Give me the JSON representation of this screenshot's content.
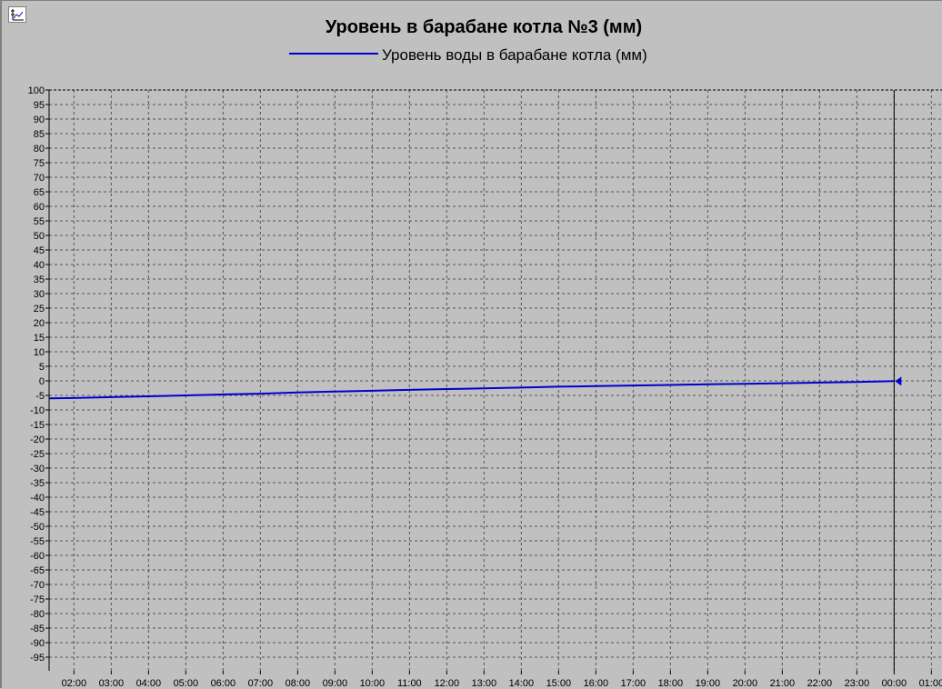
{
  "chart_data": {
    "type": "line",
    "title": "Уровень в барабане котла №3 (мм)",
    "series": [
      {
        "name": "Уровень воды в барабане котла (мм)",
        "color": "#0000d0",
        "points": [
          [
            "01:20",
            -6.0
          ],
          [
            "02:00",
            -5.9
          ],
          [
            "03:00",
            -5.6
          ],
          [
            "04:00",
            -5.3
          ],
          [
            "05:00",
            -5.0
          ],
          [
            "06:00",
            -4.7
          ],
          [
            "07:00",
            -4.4
          ],
          [
            "08:00",
            -4.0
          ],
          [
            "09:00",
            -3.7
          ],
          [
            "10:00",
            -3.4
          ],
          [
            "11:00",
            -3.1
          ],
          [
            "12:00",
            -2.8
          ],
          [
            "13:00",
            -2.6
          ],
          [
            "14:00",
            -2.3
          ],
          [
            "15:00",
            -2.0
          ],
          [
            "16:00",
            -1.8
          ],
          [
            "17:00",
            -1.6
          ],
          [
            "18:00",
            -1.4
          ],
          [
            "19:00",
            -1.2
          ],
          [
            "20:00",
            -1.0
          ],
          [
            "21:00",
            -0.8
          ],
          [
            "22:00",
            -0.6
          ],
          [
            "23:00",
            -0.4
          ],
          [
            "24:00",
            -0.1
          ]
        ]
      }
    ],
    "xlim": [
      "01:20",
      "25:20"
    ],
    "x_ticks": [
      "02:00",
      "03:00",
      "04:00",
      "05:00",
      "06:00",
      "07:00",
      "08:00",
      "09:00",
      "10:00",
      "11:00",
      "12:00",
      "13:00",
      "14:00",
      "15:00",
      "16:00",
      "17:00",
      "18:00",
      "19:00",
      "20:00",
      "21:00",
      "22:00",
      "23:00",
      "00:00",
      "01:00"
    ],
    "ylim": [
      -100,
      100
    ],
    "y_ticks": [
      "100",
      "95",
      "90",
      "85",
      "80",
      "75",
      "70",
      "65",
      "60",
      "55",
      "50",
      "45",
      "40",
      "35",
      "30",
      "25",
      "20",
      "15",
      "10",
      "5",
      "0",
      "-5",
      "-10",
      "-15",
      "-20",
      "-25",
      "-30",
      "-35",
      "-40",
      "-45",
      "-50",
      "-55",
      "-60",
      "-65",
      "-70",
      "-75",
      "-80",
      "-85",
      "-90",
      "-95"
    ],
    "cursor_time": "00:00",
    "grid": true,
    "legend_position": "top-center",
    "plot_background": "#c0c0c0"
  }
}
